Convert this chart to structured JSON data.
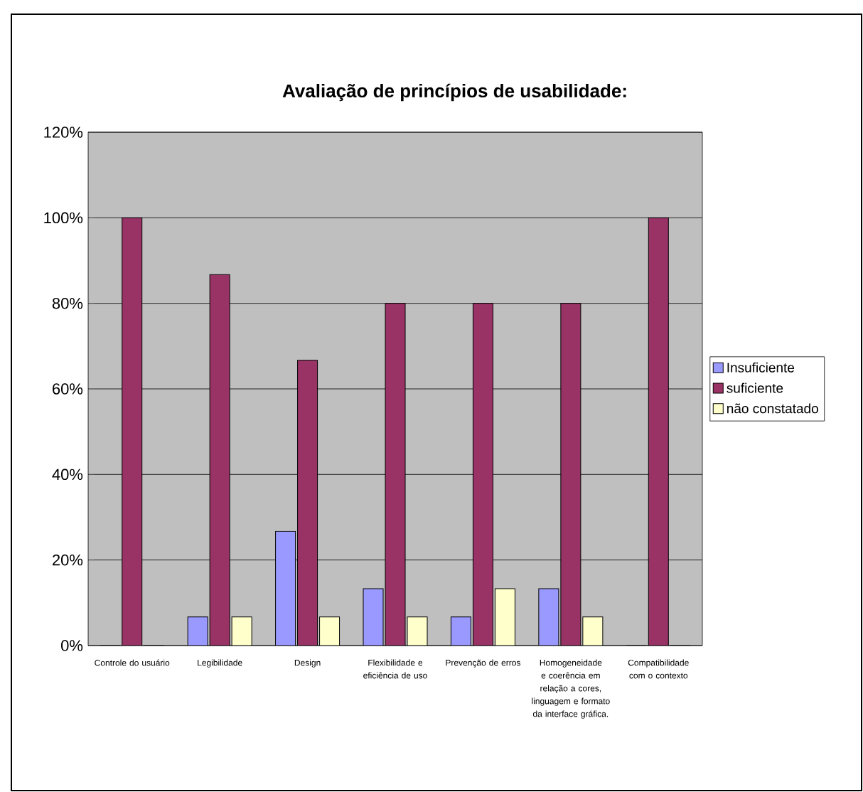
{
  "chart_data": {
    "type": "bar",
    "title": "Avaliação de princípios de usabilidade:",
    "categories": [
      "Controle do usuário",
      "Legibilidade",
      "Design",
      "Flexibilidade e eficiência de uso",
      "Prevenção de erros",
      "Homogeneidade e coerência em relação a cores, linguagem e formato da interface gráfica.",
      "Compatibilidade com o contexto"
    ],
    "series": [
      {
        "name": "Insuficiente",
        "color": "#9999ff",
        "values": [
          0,
          6.7,
          26.7,
          13.3,
          6.7,
          13.3,
          0
        ]
      },
      {
        "name": "suficiente",
        "color": "#993366",
        "values": [
          100,
          86.7,
          66.7,
          80,
          80,
          80,
          100
        ]
      },
      {
        "name": "não constatado",
        "color": "#ffffcc",
        "values": [
          0,
          6.7,
          6.7,
          6.7,
          13.3,
          6.7,
          0
        ]
      }
    ],
    "ylim": [
      0,
      120
    ],
    "yticks": [
      {
        "value": 0,
        "label": "0%"
      },
      {
        "value": 20,
        "label": "20%"
      },
      {
        "value": 40,
        "label": "40%"
      },
      {
        "value": 60,
        "label": "60%"
      },
      {
        "value": 80,
        "label": "80%"
      },
      {
        "value": 100,
        "label": "100%"
      },
      {
        "value": 120,
        "label": "120%"
      }
    ],
    "grid": "y",
    "legend": "right"
  }
}
